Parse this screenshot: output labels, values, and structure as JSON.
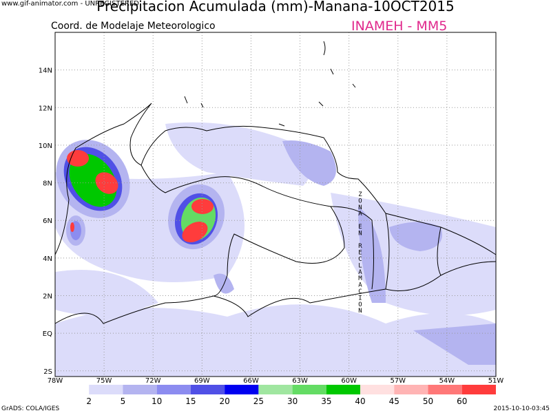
{
  "header": {
    "watermark": "www.gif-animator.com - UNREGISTERED",
    "title": "Precipitacion Acumulada (mm)-Manana-10OCT2015",
    "subtitle": "Coord. de Modelaje Meteorologico",
    "agency": "INAMEH  - MM5"
  },
  "map": {
    "xlim": [
      -78,
      -51
    ],
    "ylim": [
      -2.3,
      16
    ],
    "xticks": [
      {
        "value": -78,
        "label": "78W"
      },
      {
        "value": -75,
        "label": "75W"
      },
      {
        "value": -72,
        "label": "72W"
      },
      {
        "value": -69,
        "label": "69W"
      },
      {
        "value": -66,
        "label": "66W"
      },
      {
        "value": -63,
        "label": "63W"
      },
      {
        "value": -60,
        "label": "60W"
      },
      {
        "value": -57,
        "label": "57W"
      },
      {
        "value": -54,
        "label": "54W"
      },
      {
        "value": -51,
        "label": "51W"
      }
    ],
    "yticks": [
      {
        "value": 14,
        "label": "14N"
      },
      {
        "value": 12,
        "label": "12N"
      },
      {
        "value": 10,
        "label": "10N"
      },
      {
        "value": 8,
        "label": "8N"
      },
      {
        "value": 6,
        "label": "6N"
      },
      {
        "value": 4,
        "label": "4N"
      },
      {
        "value": 2,
        "label": "2N"
      },
      {
        "value": 0,
        "label": "EQ"
      },
      {
        "value": -2,
        "label": "2S"
      }
    ],
    "annotation": "ZONA EN RECLAMACION"
  },
  "colorbar": {
    "levels": [
      2,
      5,
      10,
      15,
      20,
      25,
      30,
      35,
      40,
      45,
      50,
      60
    ],
    "colors": [
      "#ffffff",
      "#dcdcfa",
      "#b4b4f0",
      "#8c8cf0",
      "#5050e6",
      "#0000f0",
      "#a0e6a0",
      "#64dc64",
      "#00c800",
      "#ffe0e0",
      "#ffb4b4",
      "#ff7878",
      "#ff3c3c"
    ]
  },
  "footer": {
    "credit": "GrADS: COLA/IGES",
    "timestamp": "2015-10-10-03:45"
  }
}
